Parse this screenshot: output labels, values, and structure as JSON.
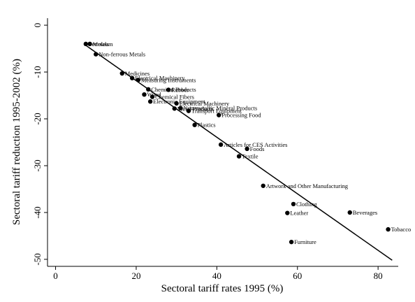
{
  "chart_data": {
    "type": "scatter",
    "xlabel": "Sectoral tariff rates 1995 (%)",
    "ylabel": "Sectoral tariff reduction 1995-2002 (%)",
    "xlim": [
      -2,
      85
    ],
    "ylim": [
      -51.5,
      1.5
    ],
    "xticks": [
      0,
      20,
      40,
      60,
      80
    ],
    "yticks": [
      0,
      -10,
      -20,
      -30,
      -40,
      -50
    ],
    "grid": false,
    "fit_line": [
      [
        7.5,
        -4.3
      ],
      [
        83.5,
        -50.2
      ]
    ],
    "points": [
      {
        "label": "Metals",
        "x": 8.5,
        "y": -4.0
      },
      {
        "label": "Petroleum",
        "x": 7.5,
        "y": -4.0
      },
      {
        "label": "Non-ferrous Metals",
        "x": 10.0,
        "y": -6.2
      },
      {
        "label": "Medicines",
        "x": 16.5,
        "y": -10.3
      },
      {
        "label": "Electrical Machinery",
        "x": 19.0,
        "y": -11.3
      },
      {
        "label": "Measuring Instruments",
        "x": 20.5,
        "y": -11.7
      },
      {
        "label": "Chemical Products",
        "x": 23.0,
        "y": -13.7
      },
      {
        "label": "Rubber",
        "x": 28.0,
        "y": -13.8
      },
      {
        "label": "Wood",
        "x": 22.0,
        "y": -14.8
      },
      {
        "label": "Chemical Fibers",
        "x": 24.0,
        "y": -15.3
      },
      {
        "label": "Electronic Equipment",
        "x": 23.5,
        "y": -16.3
      },
      {
        "label": "Electrical Machinery",
        "x": 30.0,
        "y": -16.7
      },
      {
        "label": "Metal Products",
        "x": 29.5,
        "y": -17.8
      },
      {
        "label": "Non-metallic Mineral Products",
        "x": 31.0,
        "y": -17.7
      },
      {
        "label": "Transport Equipment",
        "x": 33.0,
        "y": -18.3
      },
      {
        "label": "Processing Food",
        "x": 40.5,
        "y": -19.2
      },
      {
        "label": "Plastics",
        "x": 34.5,
        "y": -21.3
      },
      {
        "label": "Articles for CES Activities",
        "x": 41.0,
        "y": -25.5
      },
      {
        "label": "Foods",
        "x": 47.5,
        "y": -26.4
      },
      {
        "label": "Textile",
        "x": 45.5,
        "y": -28.0
      },
      {
        "label": "Artwork and Other Manufacturing",
        "x": 51.5,
        "y": -34.3
      },
      {
        "label": "Clothing",
        "x": 59.0,
        "y": -38.2
      },
      {
        "label": "Leather",
        "x": 57.5,
        "y": -40.1
      },
      {
        "label": "Beverages",
        "x": 73.0,
        "y": -40.0
      },
      {
        "label": "Tobacco",
        "x": 82.5,
        "y": -43.6
      },
      {
        "label": "Furniture",
        "x": 58.5,
        "y": -46.3
      }
    ]
  }
}
